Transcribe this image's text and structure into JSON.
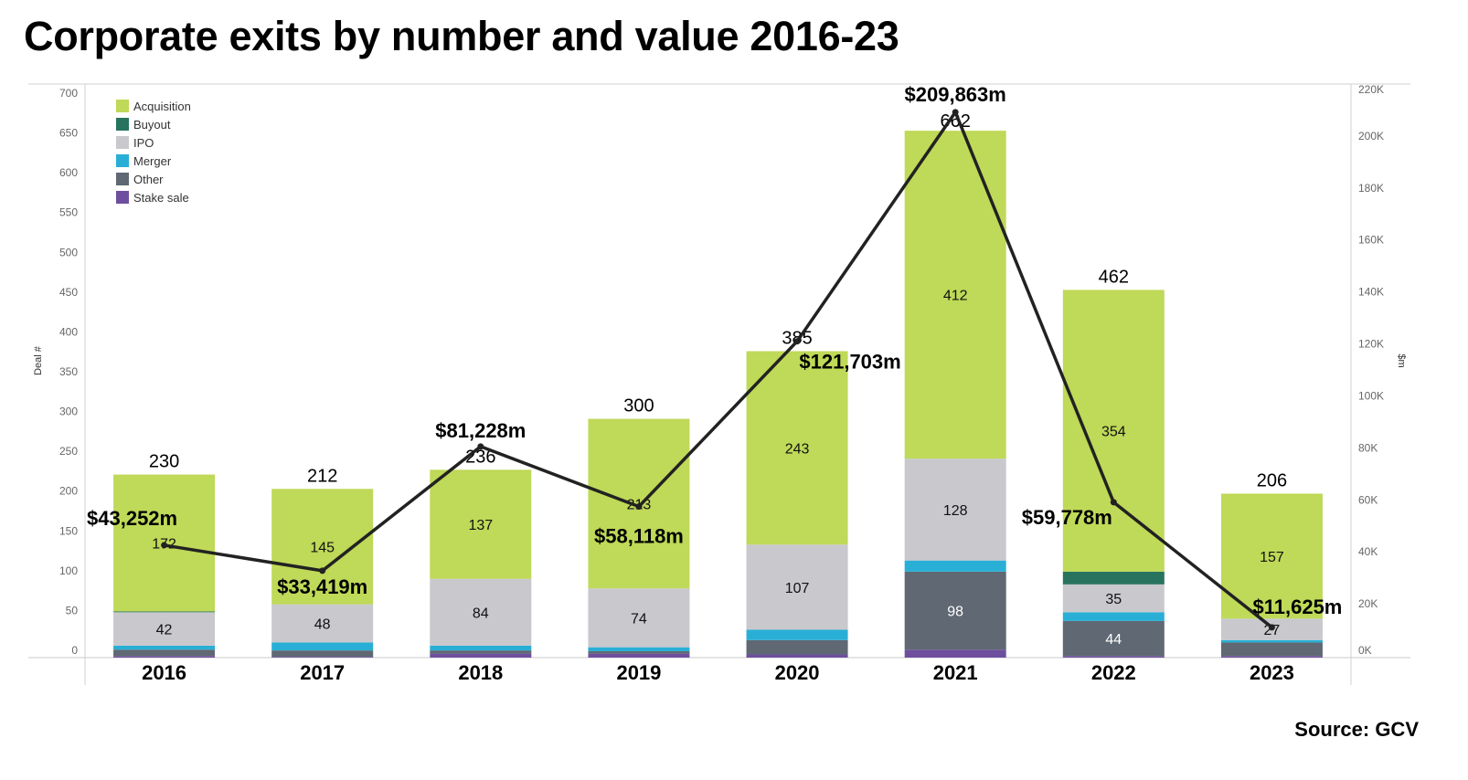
{
  "title": "Corporate exits by number and value 2016-23",
  "source": "Source: GCV",
  "chart_data": {
    "type": "bar",
    "subtype": "stacked bar with line on secondary axis",
    "categories": [
      "2016",
      "2017",
      "2018",
      "2019",
      "2020",
      "2021",
      "2022",
      "2023"
    ],
    "ylabel": "Deal #",
    "ylabel_right": "$m",
    "ylim": [
      0,
      700
    ],
    "y_ticks": [
      "0",
      "50",
      "100",
      "150",
      "200",
      "250",
      "300",
      "350",
      "400",
      "450",
      "500",
      "550",
      "600",
      "650",
      "700"
    ],
    "ylim_right": [
      0,
      220000
    ],
    "y_ticks_right": [
      "0K",
      "20K",
      "40K",
      "60K",
      "80K",
      "100K",
      "120K",
      "140K",
      "160K",
      "180K",
      "200K",
      "220K"
    ],
    "grid": false,
    "legend_position": "top-left",
    "series": [
      {
        "name": "Stake sale",
        "color": "#6e4f9e",
        "values": [
          2,
          1,
          5,
          5,
          4,
          10,
          2,
          2
        ]
      },
      {
        "name": "Other",
        "color": "#5f6873",
        "values": [
          8,
          8,
          4,
          3,
          18,
          98,
          44,
          17
        ]
      },
      {
        "name": "Merger",
        "color": "#29afd6",
        "values": [
          5,
          10,
          6,
          5,
          13,
          14,
          11,
          3
        ]
      },
      {
        "name": "IPO",
        "color": "#c8c8cd",
        "values": [
          42,
          48,
          84,
          74,
          107,
          128,
          35,
          27
        ]
      },
      {
        "name": "Buyout",
        "color": "#27735e",
        "values": [
          1,
          0,
          0,
          0,
          0,
          0,
          16,
          0
        ]
      },
      {
        "name": "Acquisition",
        "color": "#bfd958",
        "values": [
          172,
          145,
          137,
          213,
          243,
          412,
          354,
          157
        ]
      }
    ],
    "legend_order": [
      "Acquisition",
      "Buyout",
      "IPO",
      "Merger",
      "Other",
      "Stake sale"
    ],
    "totals": [
      230,
      212,
      236,
      300,
      385,
      662,
      462,
      206
    ],
    "line": {
      "axis": "right",
      "color": "#222222",
      "values": [
        43252,
        33419,
        81228,
        58118,
        121703,
        209863,
        59778,
        11625
      ],
      "labels": [
        "$43,252m",
        "$33,419m",
        "$81,228m",
        "$58,118m",
        "$121,703m",
        "$209,863m",
        "$59,778m",
        "$11,625m"
      ]
    }
  }
}
